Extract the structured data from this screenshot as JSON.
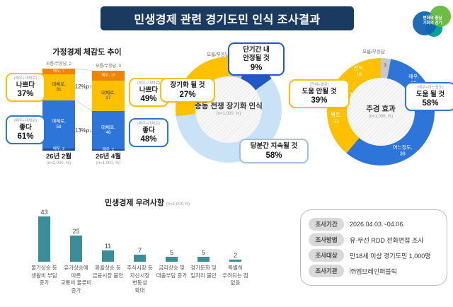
{
  "header": {
    "title": "민생경제 관련 경기도민 인식 조사결과",
    "logo": {
      "line1": "변화의 중심",
      "line2": "기회의 경기"
    }
  },
  "palette": {
    "header_navy": "#1B3A60",
    "orange": "#F08300",
    "yellow": "#FFC000",
    "blue": "#2E75D9",
    "navy": "#1F4E9C",
    "light_blue": "#C9E2F5",
    "dark_blue": "#2457C5",
    "gray": "#C8C8C8",
    "teal": "#3B8E97"
  },
  "household": {
    "title": "가정경제 체감도 추이",
    "bars": [
      {
        "category": "26년 2월",
        "base": "(n=2,000, %)",
        "unknown": "모름/무응답, 2",
        "segments": [
          {
            "name": "매우",
            "value": 7,
            "color": "orange"
          },
          {
            "name": "대체로",
            "value": 31,
            "color": "yellow"
          },
          {
            "name": "대체로",
            "value": 58,
            "color": "blue"
          },
          {
            "name": "매우",
            "value": 3,
            "color": "navy"
          }
        ]
      },
      {
        "category": "26년 4월",
        "base": "(n=1,000, %)",
        "unknown": "모름/무응답, 3",
        "segments": [
          {
            "name": "매우",
            "value": 12,
            "color": "orange"
          },
          {
            "name": "대체로",
            "value": 37,
            "color": "yellow"
          },
          {
            "name": "대체로",
            "value": 46,
            "color": "blue"
          },
          {
            "name": "매우",
            "value": 2,
            "color": "navy"
          }
        ]
      }
    ],
    "deltas": [
      {
        "text": "12%p",
        "dir": "up"
      },
      {
        "text": "13%p",
        "dir": "down"
      }
    ],
    "callouts": [
      {
        "sub": "(매우+대체로)",
        "line1": "나쁘다",
        "pct": "37%"
      },
      {
        "sub": "(매우+대체로)",
        "line1": "좋다",
        "pct": "61%"
      },
      {
        "sub": "(매우+대체로)",
        "line1": "나쁘다",
        "pct": "49%"
      },
      {
        "sub": "(매우+대체로)",
        "line1": "좋다",
        "pct": "48%"
      }
    ]
  },
  "war": {
    "title": "중동 전쟁 장기화 인식",
    "base": "(n=1,000, %)",
    "unknown_caption": "모름/무응답",
    "segments": [
      {
        "label": "모름/무응답",
        "value": 6,
        "color": "gray",
        "show": "value"
      },
      {
        "label": "단기간 내 안정될 것",
        "value": 9,
        "color": "dark_blue",
        "show": "none"
      },
      {
        "label": "당분간 지속될 것",
        "value": 58,
        "color": "light_blue",
        "show": "none"
      },
      {
        "label": "장기화 될 것",
        "value": 27,
        "color": "yellow",
        "show": "none"
      }
    ],
    "callouts": [
      {
        "line1": "단기간 내",
        "line2": "안정될 것",
        "pct": "9%"
      },
      {
        "line1": "장기화 될 것",
        "pct": "27%"
      },
      {
        "line1": "당분간 지속될 것",
        "pct": "58%"
      }
    ]
  },
  "budget": {
    "title": "추경 효과",
    "base": "(n=1,000, %)",
    "unknown_caption": "모름/무응답",
    "segments": [
      {
        "label": "모름/무응답",
        "value": 3,
        "color": "gray",
        "show": "value"
      },
      {
        "label": "매우",
        "value": 20,
        "color": "blue",
        "show": "full"
      },
      {
        "label": "어느정도",
        "value": 38,
        "color": "blue",
        "show": "full"
      },
      {
        "label": "별로",
        "value": 23,
        "color": "yellow",
        "show": "full"
      },
      {
        "label": "전혀",
        "value": 16,
        "color": "yellow",
        "show": "full"
      }
    ],
    "callouts": [
      {
        "sub": "(매우+어느정도)",
        "line1": "도움 될 것",
        "pct": "58%"
      },
      {
        "sub": "(전혀+별로)",
        "line1": "도움 안될 것",
        "pct": "39%"
      }
    ]
  },
  "concerns": {
    "title": "민생경제 우려사항",
    "base": "(n=1,000,%)",
    "categories": [
      "물가상승 등\n생활비 부담\n증가",
      "유가상승에\n따른\n교통비 물류비\n증가",
      "환율상승 등\n금융시장 불안",
      "주식시장 등\n자산시장\n변동성\n확대",
      "금리상승 및\n대출부담 증가",
      "경기둔화 및\n일자리 불안",
      "특별히\n우려되는 점\n없음"
    ],
    "values": [
      43,
      25,
      11,
      7,
      5,
      5,
      2
    ]
  },
  "survey_info": {
    "rows": [
      {
        "label": "조사기간",
        "value": "2026.04.03.~04.06."
      },
      {
        "label": "조사방법",
        "value": "유·무선 RDD 전화면접 조사"
      },
      {
        "label": "조사대상",
        "value": "만18세 이상 경기도민 1,000명"
      },
      {
        "label": "조사기관",
        "value": "㈜엠브레인퍼블릭"
      }
    ]
  },
  "chart_data": [
    {
      "type": "bar",
      "stacked": true,
      "title": "가정경제 체감도 추이",
      "categories": [
        "26년 2월 (n=2,000, %)",
        "26년 4월 (n=1,000, %)"
      ],
      "series": [
        {
          "name": "모름/무응답",
          "values": [
            2,
            3
          ]
        },
        {
          "name": "매우 나쁘다",
          "values": [
            7,
            12
          ]
        },
        {
          "name": "대체로 나쁘다",
          "values": [
            31,
            37
          ]
        },
        {
          "name": "대체로 좋다",
          "values": [
            58,
            46
          ]
        },
        {
          "name": "매우 좋다",
          "values": [
            3,
            2
          ]
        }
      ],
      "annotations": [
        "나쁘다(매우+대체로): 37% → 49%, 12%p 증가",
        "좋다(매우+대체로): 61% → 48%, 13%p 감소"
      ]
    },
    {
      "type": "pie",
      "title": "중동 전쟁 장기화 인식 (n=1,000, %)",
      "labels": [
        "당분간 지속될 것",
        "장기화 될 것",
        "단기간 내 안정될 것",
        "모름/무응답"
      ],
      "values": [
        58,
        27,
        9,
        6
      ]
    },
    {
      "type": "pie",
      "title": "추경 효과 (n=1,000, %)",
      "labels": [
        "매우 도움 될 것",
        "어느정도 도움 될 것",
        "별로 도움 안될 것",
        "전혀 도움 안될 것",
        "모름/무응답"
      ],
      "values": [
        20,
        38,
        23,
        16,
        3
      ],
      "annotations": [
        "도움 될 것(매우+어느정도) 58%",
        "도움 안될 것(전혀+별로) 39%"
      ]
    },
    {
      "type": "bar",
      "title": "민생경제 우려사항 (n=1,000,%)",
      "categories": [
        "물가상승 등 생활비 부담 증가",
        "유가상승에 따른 교통비 물류비 증가",
        "환율상승 등 금융시장 불안",
        "주식시장 등 자산시장 변동성 확대",
        "금리상승 및 대출부담 증가",
        "경기둔화 및 일자리 불안",
        "특별히 우려되는 점 없음"
      ],
      "values": [
        43,
        25,
        11,
        7,
        5,
        5,
        2
      ],
      "ylim": [
        0,
        50
      ]
    }
  ]
}
